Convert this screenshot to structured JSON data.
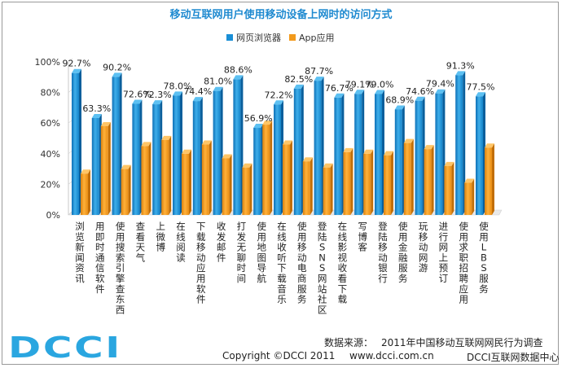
{
  "chart_data": {
    "type": "bar",
    "title": "移动互联网用户使用移动设备上网时的访问方式",
    "legend_position": "top-center",
    "ylim": [
      0,
      100
    ],
    "yticks": [
      {
        "value": 0,
        "label": "0%"
      },
      {
        "value": 20,
        "label": "20%"
      },
      {
        "value": 40,
        "label": "40%"
      },
      {
        "value": 60,
        "label": "60%"
      },
      {
        "value": 80,
        "label": "80%"
      },
      {
        "value": 100,
        "label": "100%"
      }
    ],
    "categories": [
      "浏览新闻资讯",
      "用即时通信软件",
      "使用搜索引擎查东西",
      "查看天气",
      "上微博",
      "在线阅读",
      "下载移动应用软件",
      "收发邮件",
      "打发无聊时间",
      "使用地图导航",
      "在线收听下载音乐",
      "使用移动电商服务",
      "登陆SNS网站社区",
      "在线影视收看下载",
      "写博客",
      "登陆移动银行",
      "使用金融服务",
      "玩移动网游",
      "进行网上预订",
      "使用求职招聘应用",
      "使用LBS服务"
    ],
    "series": [
      {
        "name": "网页浏览器",
        "color": "#1a8fd6",
        "values": [
          92.7,
          63.3,
          90.2,
          72.6,
          72.3,
          78.0,
          74.4,
          81.0,
          88.6,
          56.9,
          72.2,
          82.5,
          87.7,
          76.7,
          79.1,
          79.0,
          68.9,
          74.6,
          79.4,
          91.3,
          77.5
        ],
        "labels": [
          "92.7%",
          "63.3%",
          "90.2%",
          "72.6%",
          "72.3%",
          "78.0%",
          "74.4%",
          "81.0%",
          "88.6%",
          "56.9%",
          "72.2%",
          "82.5%",
          "87.7%",
          "76.7%",
          "79.1%",
          "79.0%",
          "68.9%",
          "74.6%",
          "79.4%",
          "91.3%",
          "77.5%"
        ]
      },
      {
        "name": "App应用",
        "color": "#f29a1c",
        "values": [
          27,
          58,
          30,
          45,
          49,
          40,
          46,
          37,
          31,
          59,
          46,
          35,
          31,
          41,
          40,
          39,
          47,
          43,
          32,
          21,
          44
        ]
      }
    ]
  },
  "footer": {
    "source_label": "数据来源：",
    "source_text": "2011年中国移动互联网网民行为调查",
    "copyright": "Copyright ©DCCI 2011",
    "website": "www.dcci.com.cn",
    "org": "DCCI互联网数据中心"
  },
  "logo": {
    "text": "DCCI"
  }
}
